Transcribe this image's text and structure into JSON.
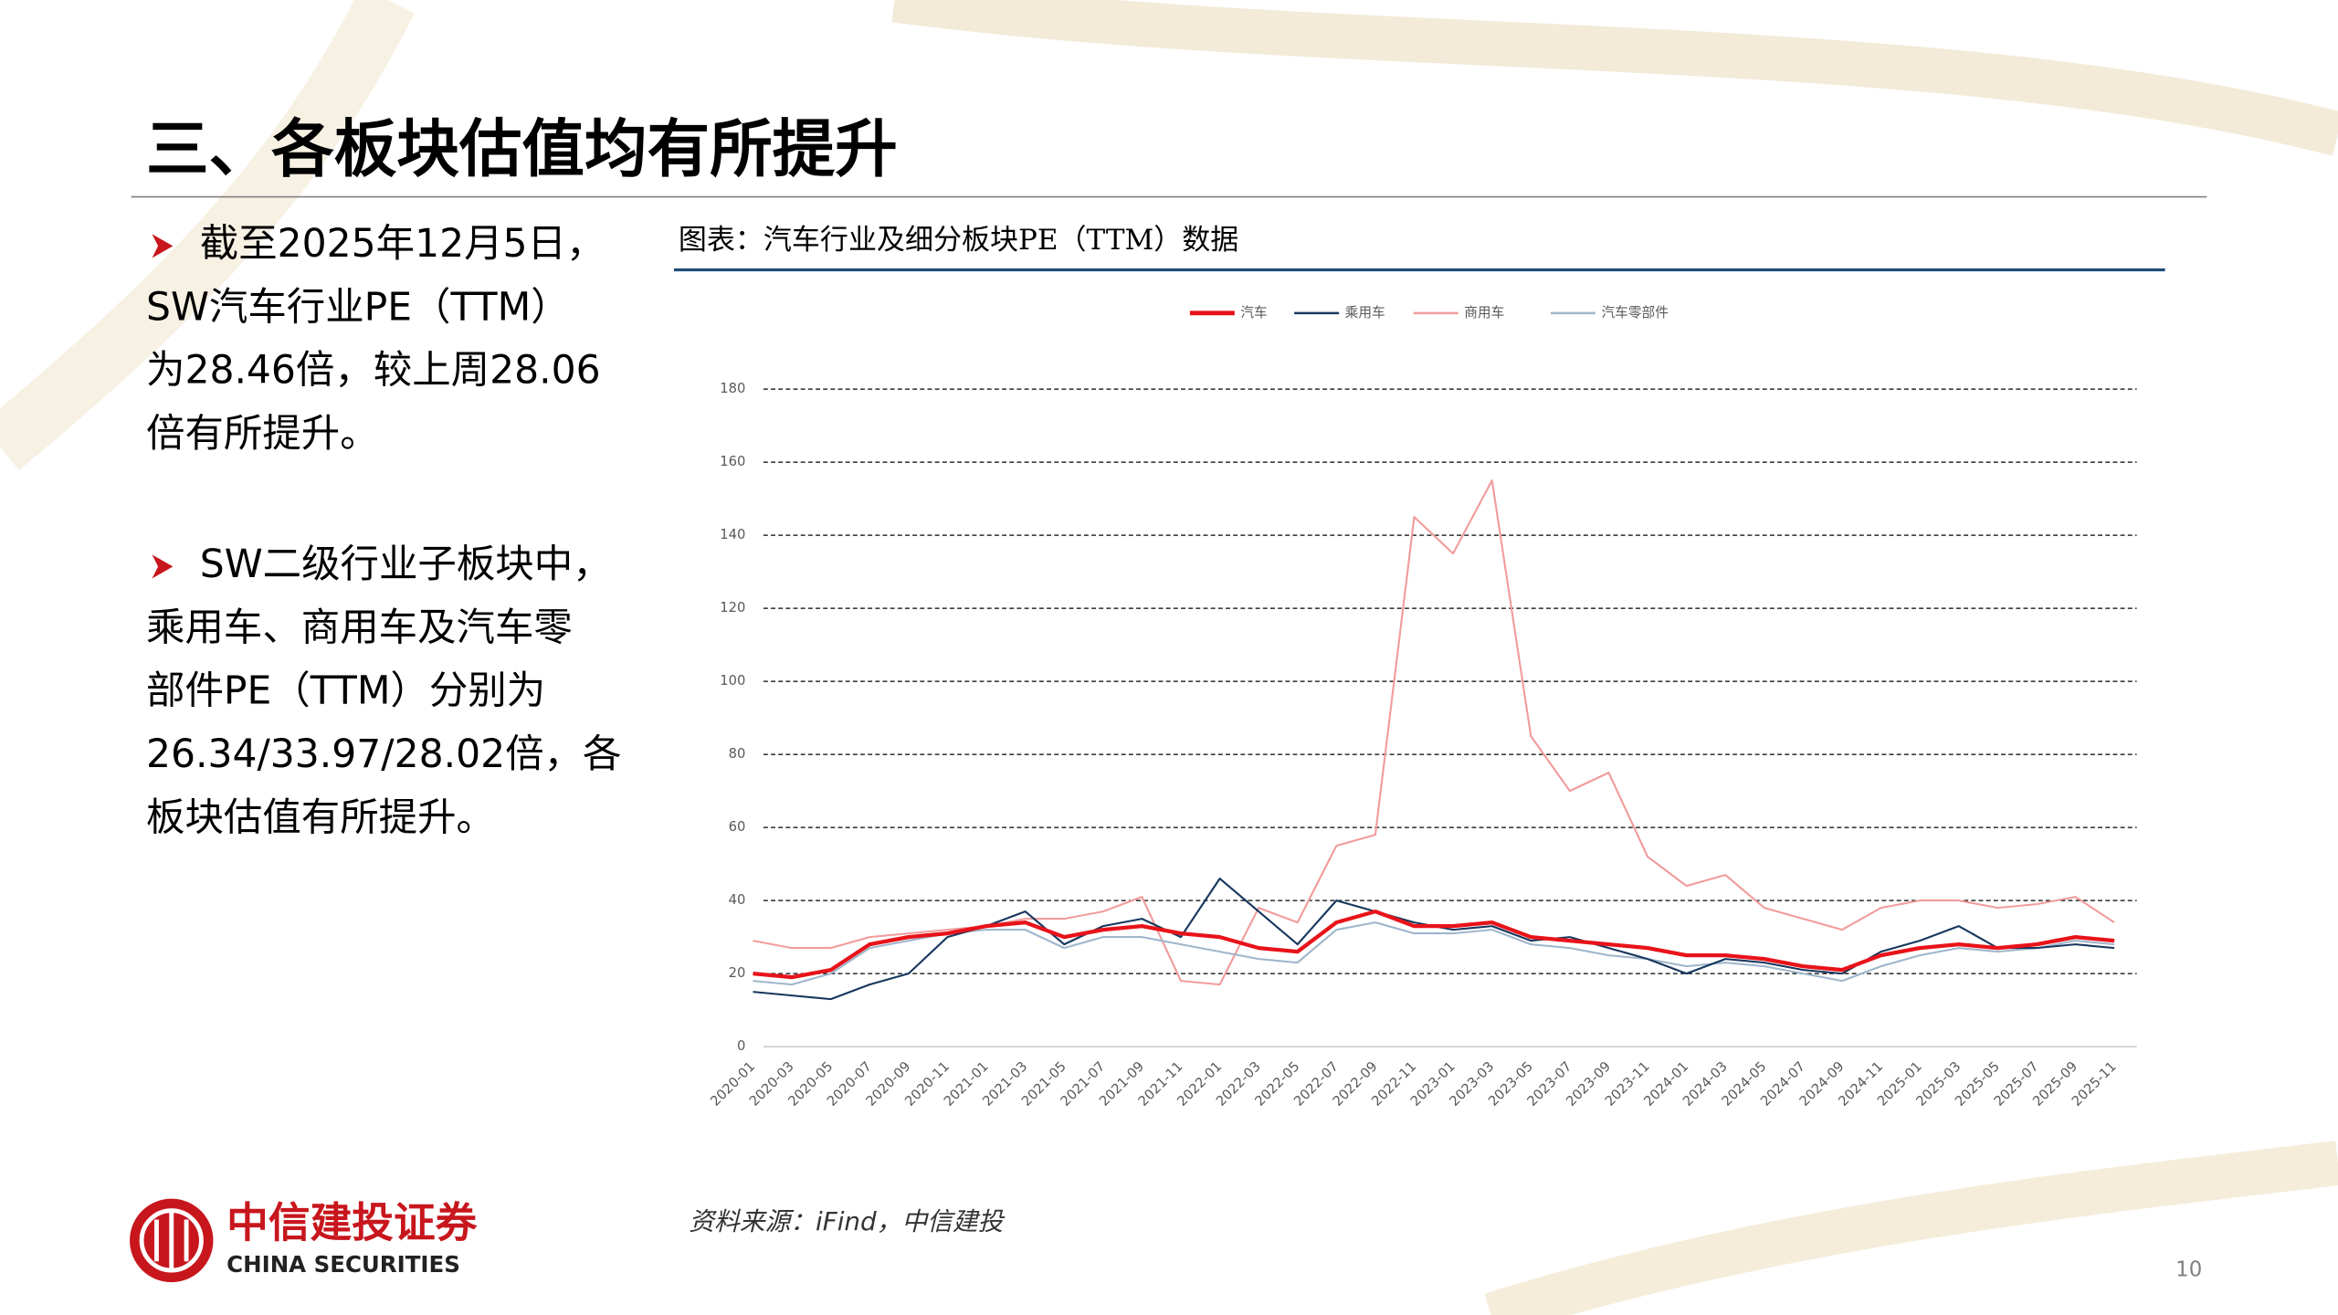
{
  "slide": {
    "title": "三、各板块估值均有所提升",
    "bullets": [
      [
        "截至2025年12月5日，",
        "SW汽车行业PE（TTM）",
        "为28.46倍，较上周28.06",
        "倍有所提升。"
      ],
      [
        "SW二级行业子板块中，",
        "乘用车、商用车及汽车零",
        "部件PE（TTM）分别为",
        "26.34/33.97/28.02倍，各",
        "板块估值有所提升。"
      ]
    ],
    "source": "资料来源：iFind，中信建投",
    "logo_cn": "中信建投证券",
    "logo_en": "CHINA SECURITIES",
    "page_number": "10"
  },
  "chart_data": {
    "type": "line",
    "title": "图表：汽车行业及细分板块PE（TTM）数据",
    "categories": [
      "2020-01",
      "2020-03",
      "2020-05",
      "2020-07",
      "2020-09",
      "2020-11",
      "2021-01",
      "2021-03",
      "2021-05",
      "2021-07",
      "2021-09",
      "2021-11",
      "2022-01",
      "2022-03",
      "2022-05",
      "2022-07",
      "2022-09",
      "2022-11",
      "2023-01",
      "2023-03",
      "2023-05",
      "2023-07",
      "2023-09",
      "2023-11",
      "2024-01",
      "2024-03",
      "2024-05",
      "2024-07",
      "2024-09",
      "2024-11",
      "2025-01",
      "2025-03",
      "2025-05",
      "2025-07",
      "2025-09",
      "2025-11"
    ],
    "series": [
      {
        "name": "汽车",
        "color": "#e8131a",
        "values": [
          20,
          19,
          21,
          28,
          30,
          31,
          33,
          34,
          30,
          32,
          33,
          31,
          30,
          27,
          26,
          34,
          37,
          33,
          33,
          34,
          30,
          29,
          28,
          27,
          25,
          25,
          24,
          22,
          21,
          25,
          27,
          28,
          27,
          28,
          30,
          29
        ]
      },
      {
        "name": "乘用车",
        "color": "#17375e",
        "values": [
          15,
          14,
          13,
          17,
          20,
          30,
          33,
          37,
          28,
          33,
          35,
          30,
          46,
          37,
          28,
          40,
          37,
          34,
          32,
          33,
          29,
          30,
          27,
          24,
          20,
          24,
          23,
          21,
          20,
          26,
          29,
          33,
          27,
          27,
          28,
          27
        ]
      },
      {
        "name": "商用车",
        "color": "#f19c9c",
        "values": [
          29,
          27,
          27,
          30,
          31,
          32,
          33,
          35,
          35,
          37,
          41,
          18,
          17,
          38,
          34,
          55,
          58,
          145,
          135,
          155,
          85,
          70,
          75,
          52,
          44,
          47,
          38,
          35,
          32,
          38,
          40,
          40,
          38,
          39,
          41,
          34
        ]
      },
      {
        "name": "汽车零部件",
        "color": "#9fb6cb",
        "values": [
          18,
          17,
          20,
          27,
          29,
          31,
          32,
          32,
          27,
          30,
          30,
          28,
          26,
          24,
          23,
          32,
          34,
          31,
          31,
          32,
          28,
          27,
          25,
          24,
          22,
          23,
          22,
          20,
          18,
          22,
          25,
          27,
          26,
          27,
          29,
          28
        ]
      }
    ],
    "ylim": [
      0,
      180
    ],
    "yticks": [
      0,
      20,
      40,
      60,
      80,
      100,
      120,
      140,
      160,
      180
    ],
    "grid": true
  }
}
